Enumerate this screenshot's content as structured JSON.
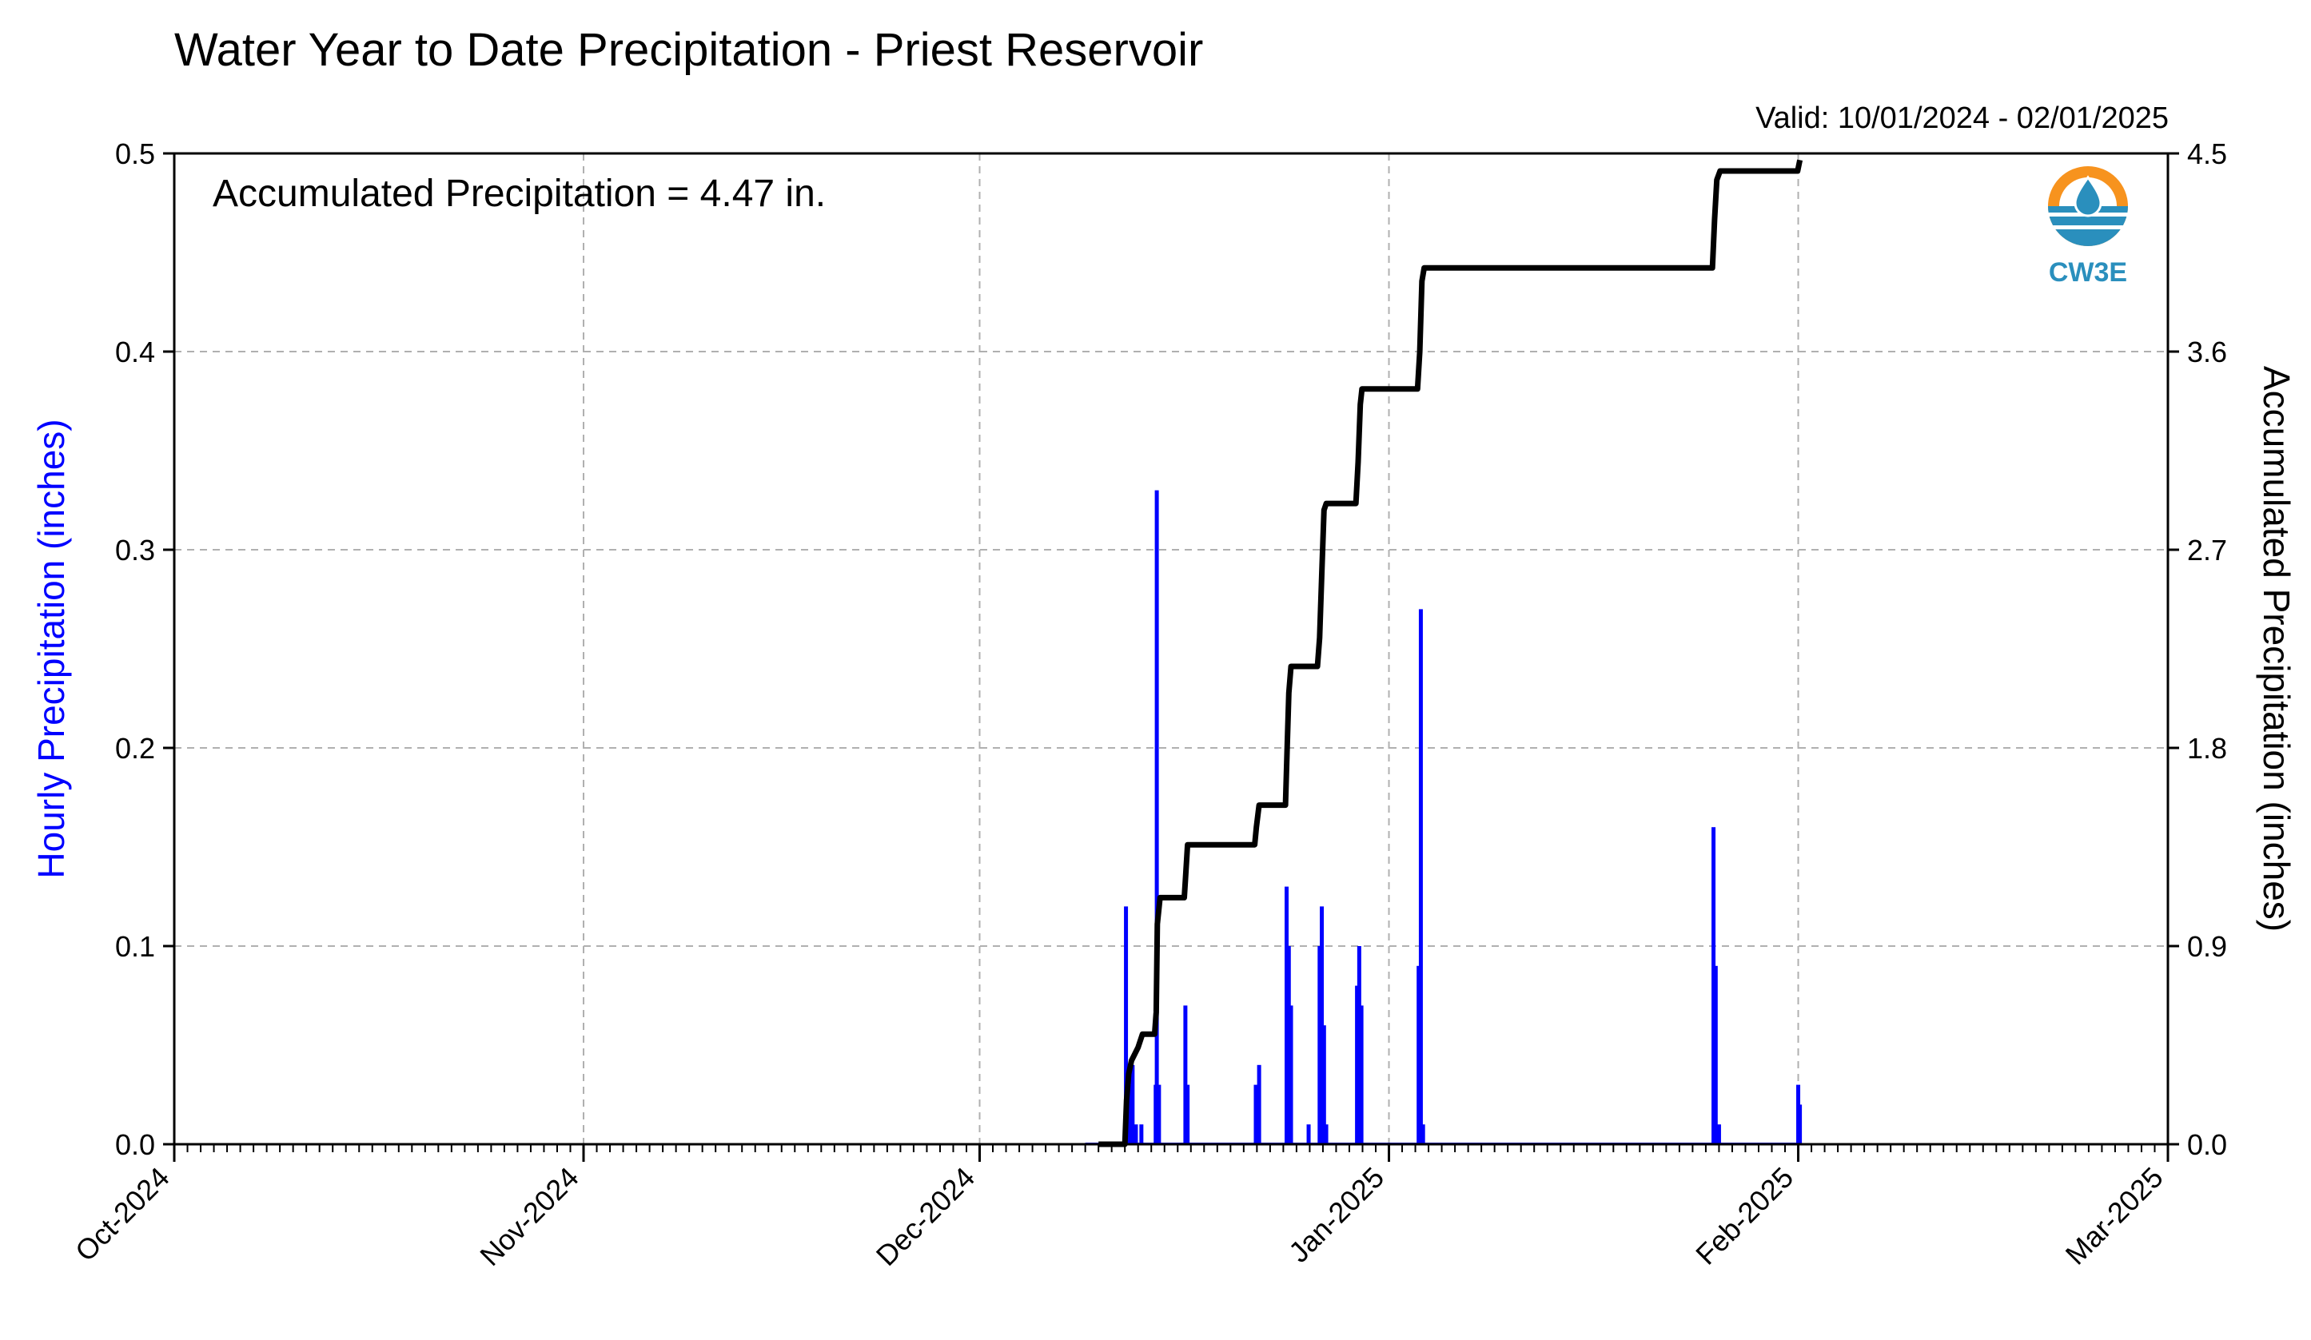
{
  "chart_data": {
    "type": "bar",
    "title": "Water Year to Date Precipitation - Priest Reservoir",
    "subtitle": "Valid: 10/01/2024 - 02/01/2025",
    "annotation": "Accumulated Precipitation = 4.47 in.",
    "logo_text": "CW3E",
    "ylabel_left": "Hourly Precipitation (inches)",
    "ylabel_right": "Accumulated Precipitation (inches)",
    "grid": true,
    "colors": {
      "bars": "#0000ff",
      "accumulated_line": "#000000",
      "left_label": "#0000ff",
      "logo_orange": "#f7931e",
      "logo_teal": "#2a8fbd"
    },
    "x_axis": {
      "start": "2024-10-01",
      "end": "2025-03-01",
      "tick_labels": [
        "Oct-2024",
        "Nov-2024",
        "Dec-2024",
        "Jan-2025",
        "Feb-2025",
        "Mar-2025"
      ],
      "tick_dates": [
        "2024-10-01",
        "2024-11-01",
        "2024-12-01",
        "2025-01-01",
        "2025-02-01",
        "2025-03-01"
      ]
    },
    "y_left": {
      "lim": [
        0,
        0.5
      ],
      "ticks": [
        0.0,
        0.1,
        0.2,
        0.3,
        0.4,
        0.5
      ],
      "tick_labels": [
        "0.0",
        "0.1",
        "0.2",
        "0.3",
        "0.4",
        "0.5"
      ]
    },
    "y_right": {
      "lim": [
        0,
        4.5
      ],
      "ticks": [
        0.0,
        0.9,
        1.8,
        2.7,
        3.6,
        4.5
      ],
      "tick_labels": [
        "0.0",
        "0.9",
        "1.8",
        "2.7",
        "3.6",
        "4.5"
      ]
    },
    "hourly_series": {
      "name": "Hourly Precipitation",
      "points": [
        [
          "2024-12-12T02:00",
          0.12
        ],
        [
          "2024-12-12T06:00",
          0.02
        ],
        [
          "2024-12-12T10:00",
          0.03
        ],
        [
          "2024-12-12T14:00",
          0.04
        ],
        [
          "2024-12-12T20:00",
          0.01
        ],
        [
          "2024-12-13T06:00",
          0.01
        ],
        [
          "2024-12-14T08:00",
          0.03
        ],
        [
          "2024-12-14T10:00",
          0.33
        ],
        [
          "2024-12-14T14:00",
          0.03
        ],
        [
          "2024-12-16T14:00",
          0.07
        ],
        [
          "2024-12-16T18:00",
          0.03
        ],
        [
          "2024-12-21T22:00",
          0.03
        ],
        [
          "2024-12-22T04:00",
          0.04
        ],
        [
          "2024-12-24T06:00",
          0.13
        ],
        [
          "2024-12-24T10:00",
          0.1
        ],
        [
          "2024-12-24T14:00",
          0.07
        ],
        [
          "2024-12-25T22:00",
          0.01
        ],
        [
          "2024-12-26T18:00",
          0.1
        ],
        [
          "2024-12-26T22:00",
          0.12
        ],
        [
          "2024-12-27T02:00",
          0.06
        ],
        [
          "2024-12-27T06:00",
          0.01
        ],
        [
          "2024-12-29T14:00",
          0.08
        ],
        [
          "2024-12-29T18:00",
          0.1
        ],
        [
          "2024-12-29T22:00",
          0.07
        ],
        [
          "2025-01-03T06:00",
          0.09
        ],
        [
          "2025-01-03T10:00",
          0.27
        ],
        [
          "2025-01-03T14:00",
          0.01
        ],
        [
          "2025-01-25T14:00",
          0.16
        ],
        [
          "2025-01-25T18:00",
          0.09
        ],
        [
          "2025-01-26T00:00",
          0.01
        ],
        [
          "2025-02-01T00:00",
          0.03
        ],
        [
          "2025-02-01T03:00",
          0.02
        ]
      ]
    },
    "accumulated_series": {
      "name": "Accumulated Precipitation",
      "points": [
        [
          "2024-12-10T00:00",
          0.0
        ],
        [
          "2024-12-12T00:00",
          0.0
        ],
        [
          "2024-12-12T03:00",
          0.2
        ],
        [
          "2024-12-12T07:00",
          0.32
        ],
        [
          "2024-12-12T12:00",
          0.38
        ],
        [
          "2024-12-13T00:00",
          0.44
        ],
        [
          "2024-12-13T08:00",
          0.5
        ],
        [
          "2024-12-14T06:00",
          0.5
        ],
        [
          "2024-12-14T09:00",
          0.6
        ],
        [
          "2024-12-14T11:00",
          1.0
        ],
        [
          "2024-12-14T16:00",
          1.12
        ],
        [
          "2024-12-16T12:00",
          1.12
        ],
        [
          "2024-12-16T14:00",
          1.2
        ],
        [
          "2024-12-16T18:00",
          1.36
        ],
        [
          "2024-12-21T20:00",
          1.36
        ],
        [
          "2024-12-21T23:00",
          1.44
        ],
        [
          "2024-12-22T04:00",
          1.54
        ],
        [
          "2024-12-24T04:00",
          1.54
        ],
        [
          "2024-12-24T07:00",
          1.8
        ],
        [
          "2024-12-24T10:00",
          2.05
        ],
        [
          "2024-12-24T14:00",
          2.17
        ],
        [
          "2024-12-26T14:00",
          2.17
        ],
        [
          "2024-12-26T18:00",
          2.3
        ],
        [
          "2024-12-26T22:00",
          2.6
        ],
        [
          "2024-12-27T02:00",
          2.88
        ],
        [
          "2024-12-27T06:00",
          2.91
        ],
        [
          "2024-12-29T12:00",
          2.91
        ],
        [
          "2024-12-29T16:00",
          3.1
        ],
        [
          "2024-12-29T20:00",
          3.36
        ],
        [
          "2024-12-29T23:00",
          3.43
        ],
        [
          "2025-01-03T04:00",
          3.43
        ],
        [
          "2025-01-03T08:00",
          3.6
        ],
        [
          "2025-01-03T12:00",
          3.92
        ],
        [
          "2025-01-03T16:00",
          3.98
        ],
        [
          "2025-01-25T12:00",
          3.98
        ],
        [
          "2025-01-25T16:00",
          4.2
        ],
        [
          "2025-01-25T20:00",
          4.38
        ],
        [
          "2025-01-26T02:00",
          4.42
        ],
        [
          "2025-01-31T23:00",
          4.42
        ],
        [
          "2025-02-01T03:00",
          4.47
        ]
      ]
    }
  }
}
